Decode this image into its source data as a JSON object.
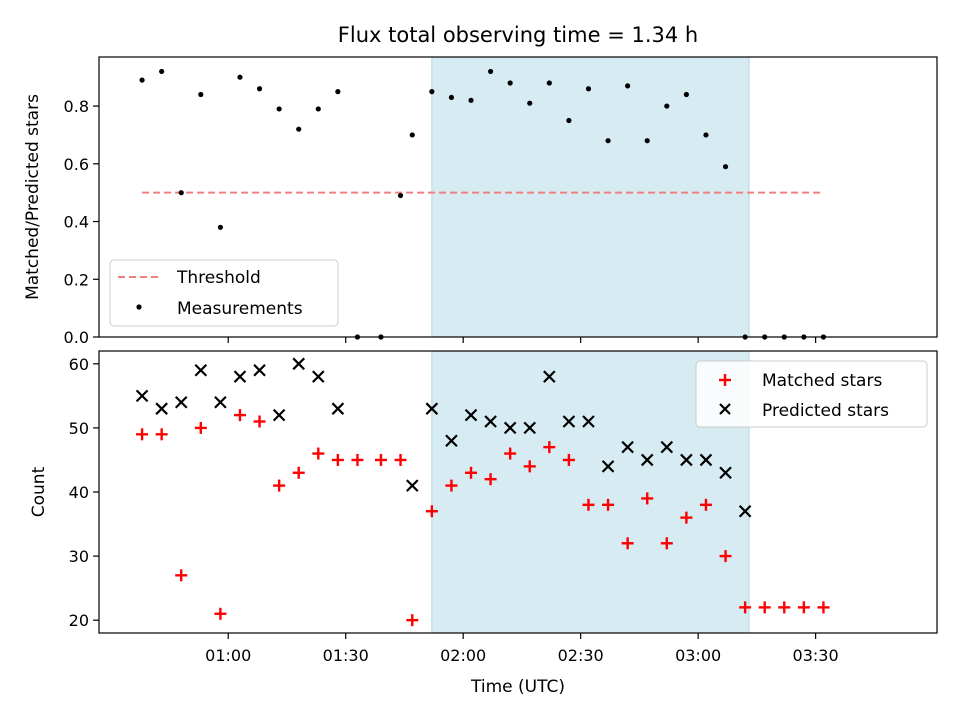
{
  "chart_data": [
    {
      "type": "scatter",
      "title": "Flux total observing time = 1.34 h",
      "ylabel": "Matched/Predicted stars",
      "ylim": [
        0,
        0.97
      ],
      "xlim_minutes_utc": [
        27,
        241
      ],
      "yticks": [
        0.0,
        0.2,
        0.4,
        0.6,
        0.8
      ],
      "ytick_labels": [
        "0.0",
        "0.2",
        "0.4",
        "0.6",
        "0.8"
      ],
      "shaded_span_utc": [
        "01:52",
        "03:13"
      ],
      "shaded_color": "#add8e6",
      "legend_position": "lower-left",
      "threshold": {
        "name": "Threshold",
        "value": 0.5,
        "x_from": "00:38",
        "x_to": "03:32",
        "color": "#f08080",
        "style": "dashed"
      },
      "series": [
        {
          "name": "Measurements",
          "color": "#000000",
          "marker": "dot",
          "x": [
            "00:38",
            "00:43",
            "00:48",
            "00:53",
            "00:58",
            "01:03",
            "01:08",
            "01:13",
            "01:18",
            "01:23",
            "01:28",
            "01:33",
            "01:39",
            "01:44",
            "01:47",
            "01:52",
            "01:57",
            "02:02",
            "02:07",
            "02:12",
            "02:17",
            "02:22",
            "02:27",
            "02:32",
            "02:37",
            "02:42",
            "02:47",
            "02:52",
            "02:57",
            "03:02",
            "03:07",
            "03:12",
            "03:17",
            "03:22",
            "03:27",
            "03:32"
          ],
          "y": [
            0.89,
            0.92,
            0.5,
            0.84,
            0.38,
            0.9,
            0.86,
            0.79,
            0.72,
            0.79,
            0.85,
            0.0,
            0.0,
            0.49,
            0.7,
            0.85,
            0.83,
            0.82,
            0.92,
            0.88,
            0.81,
            0.88,
            0.75,
            0.86,
            0.68,
            0.87,
            0.68,
            0.8,
            0.84,
            0.7,
            0.59,
            0.0,
            0.0,
            0.0,
            0.0,
            0.0
          ]
        }
      ]
    },
    {
      "type": "scatter",
      "xlabel": "Time (UTC)",
      "ylabel": "Count",
      "ylim": [
        18,
        62
      ],
      "xlim_minutes_utc": [
        27,
        241
      ],
      "yticks": [
        20,
        30,
        40,
        50,
        60
      ],
      "ytick_labels": [
        "20",
        "30",
        "40",
        "50",
        "60"
      ],
      "xticks": [
        "01:00",
        "01:30",
        "02:00",
        "02:30",
        "03:00",
        "03:30"
      ],
      "xticks_minutes": [
        60,
        90,
        120,
        150,
        180,
        210
      ],
      "shaded_span_utc": [
        "01:52",
        "03:13"
      ],
      "shaded_color": "#add8e6",
      "legend_position": "upper-right",
      "series": [
        {
          "name": "Matched stars",
          "color": "#ff0000",
          "marker": "plus",
          "x": [
            "00:38",
            "00:43",
            "00:48",
            "00:53",
            "00:58",
            "01:03",
            "01:08",
            "01:13",
            "01:18",
            "01:23",
            "01:28",
            "01:33",
            "01:39",
            "01:44",
            "01:47",
            "01:52",
            "01:57",
            "02:02",
            "02:07",
            "02:12",
            "02:17",
            "02:22",
            "02:27",
            "02:32",
            "02:37",
            "02:42",
            "02:47",
            "02:52",
            "02:57",
            "03:02",
            "03:07",
            "03:12",
            "03:17",
            "03:22",
            "03:27",
            "03:32"
          ],
          "y": [
            49,
            49,
            27,
            50,
            21,
            52,
            51,
            41,
            43,
            46,
            45,
            45,
            45,
            45,
            20,
            37,
            41,
            43,
            42,
            46,
            44,
            47,
            45,
            38,
            38,
            32,
            39,
            32,
            36,
            38,
            30,
            22,
            22,
            22,
            22,
            22
          ]
        },
        {
          "name": "Predicted stars",
          "color": "#000000",
          "marker": "x",
          "x": [
            "00:38",
            "00:43",
            "00:48",
            "00:53",
            "00:58",
            "01:03",
            "01:08",
            "01:13",
            "01:18",
            "01:23",
            "01:28",
            "01:47",
            "01:52",
            "01:57",
            "02:02",
            "02:07",
            "02:12",
            "02:17",
            "02:22",
            "02:27",
            "02:32",
            "02:37",
            "02:42",
            "02:47",
            "02:52",
            "02:57",
            "03:02",
            "03:07",
            "03:12"
          ],
          "y": [
            55,
            53,
            54,
            59,
            54,
            58,
            59,
            52,
            60,
            58,
            53,
            41,
            53,
            48,
            52,
            51,
            50,
            50,
            58,
            51,
            51,
            44,
            47,
            45,
            47,
            45,
            45,
            43,
            37
          ]
        }
      ]
    }
  ]
}
